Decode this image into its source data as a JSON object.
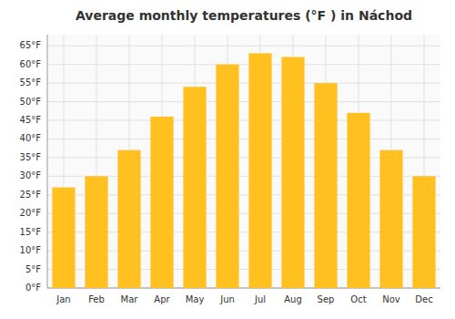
{
  "chart_data": {
    "type": "bar",
    "title": "Average monthly temperatures (°F ) in Náchod",
    "categories": [
      "Jan",
      "Feb",
      "Mar",
      "Apr",
      "May",
      "Jun",
      "Jul",
      "Aug",
      "Sep",
      "Oct",
      "Nov",
      "Dec"
    ],
    "values": [
      27,
      30,
      37,
      46,
      54,
      60,
      63,
      62,
      55,
      47,
      37,
      30
    ],
    "color": "#FFC020",
    "ylim": [
      0,
      68
    ],
    "yticks": [
      {
        "value": 0,
        "label": "0°F"
      },
      {
        "value": 5,
        "label": "5°F"
      },
      {
        "value": 10,
        "label": "10°F"
      },
      {
        "value": 15,
        "label": "15°F"
      },
      {
        "value": 20,
        "label": "20°F"
      },
      {
        "value": 25,
        "label": "25°F"
      },
      {
        "value": 30,
        "label": "30°F"
      },
      {
        "value": 35,
        "label": "35°F"
      },
      {
        "value": 40,
        "label": "40°F"
      },
      {
        "value": 45,
        "label": "45°F"
      },
      {
        "value": 50,
        "label": "50°F"
      },
      {
        "value": 55,
        "label": "55°F"
      },
      {
        "value": 60,
        "label": "60°F"
      },
      {
        "value": 65,
        "label": "65°F"
      }
    ],
    "grid": true
  }
}
